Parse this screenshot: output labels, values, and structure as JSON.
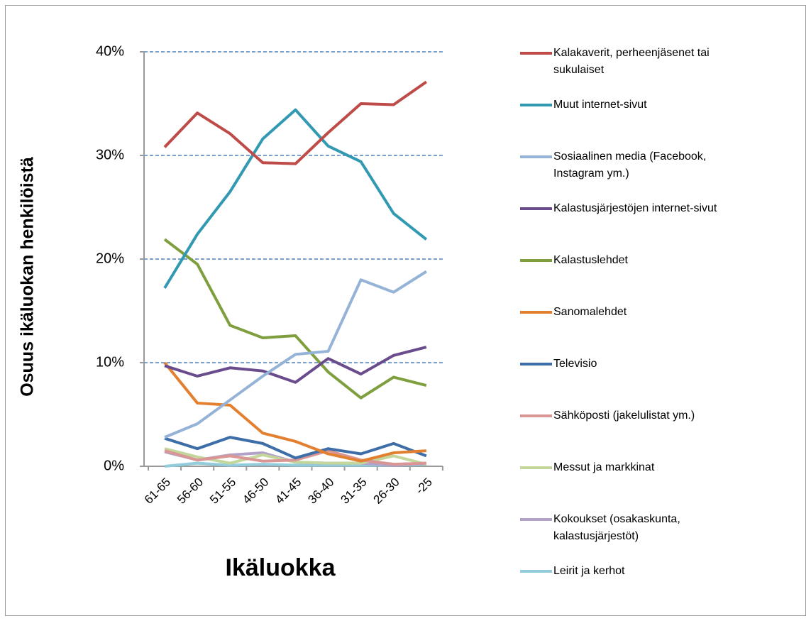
{
  "chart_data": {
    "type": "line",
    "ylabel": "Osuus ikäluokan henkilöistä",
    "xlabel": "Ikäluokka",
    "categories": [
      "61-65",
      "56-60",
      "51-55",
      "46-50",
      "41-45",
      "36-40",
      "31-35",
      "26-30",
      "-25"
    ],
    "ylim": [
      0,
      40
    ],
    "yticks": [
      {
        "value": 0,
        "label": "0%"
      },
      {
        "value": 10,
        "label": "10%"
      },
      {
        "value": 20,
        "label": "20%"
      },
      {
        "value": 30,
        "label": "30%"
      },
      {
        "value": 40,
        "label": "40%"
      }
    ],
    "grid": true,
    "legend": "right",
    "series": [
      {
        "name": "Kalakaverit, perheenjäsenet tai sukulaiset",
        "color": "#be4b48",
        "values": [
          30.8,
          34.1,
          32.1,
          29.3,
          29.2,
          32.2,
          35.0,
          34.9,
          37.1
        ]
      },
      {
        "name": "Muut internet-sivut",
        "color": "#3299b2",
        "values": [
          17.2,
          22.4,
          26.5,
          31.6,
          34.4,
          30.9,
          29.4,
          24.4,
          21.9
        ]
      },
      {
        "name": "Sosiaalinen media (Facebook, Instagram ym.)",
        "color": "#95b3d7",
        "values": [
          2.8,
          4.1,
          6.4,
          8.7,
          10.8,
          11.1,
          18.0,
          16.8,
          18.8
        ]
      },
      {
        "name": "Kalastusjärjestöjen internet-sivut",
        "color": "#6a4c8c",
        "values": [
          9.7,
          8.7,
          9.5,
          9.2,
          8.1,
          10.4,
          8.9,
          10.7,
          11.5
        ]
      },
      {
        "name": "Kalastuslehdet",
        "color": "#7f9f3f",
        "values": [
          21.9,
          19.5,
          13.6,
          12.4,
          12.6,
          9.1,
          6.6,
          8.6,
          7.8
        ]
      },
      {
        "name": "Sanomalehdet",
        "color": "#e3802f",
        "values": [
          10.0,
          6.1,
          5.9,
          3.2,
          2.4,
          1.2,
          0.5,
          1.3,
          1.5
        ]
      },
      {
        "name": "Televisio",
        "color": "#3e6ea8",
        "values": [
          2.7,
          1.7,
          2.8,
          2.2,
          0.8,
          1.7,
          1.2,
          2.2,
          1.0
        ]
      },
      {
        "name": "Sähköposti (jakelulistat ym.)",
        "color": "#d99694",
        "values": [
          1.5,
          0.6,
          1.0,
          0.5,
          0.6,
          1.5,
          0.6,
          0.2,
          0.3
        ]
      },
      {
        "name": "Messut ja markkinat",
        "color": "#c3d69b",
        "values": [
          1.7,
          0.9,
          0.3,
          1.1,
          0.4,
          0.3,
          0.3,
          1.0,
          0.2
        ]
      },
      {
        "name": "Kokoukset (osakaskunta, kalastusjärjestöt)",
        "color": "#b3a2c7",
        "values": [
          1.4,
          0.6,
          1.1,
          1.3,
          0.4,
          0.3,
          0.3,
          0.1,
          0.3
        ]
      },
      {
        "name": "Leirit ja kerhot",
        "color": "#93cddd",
        "values": [
          0,
          0.3,
          0.1,
          0.2,
          0.1,
          0.1,
          0.1,
          0.1,
          0.2
        ]
      }
    ]
  }
}
